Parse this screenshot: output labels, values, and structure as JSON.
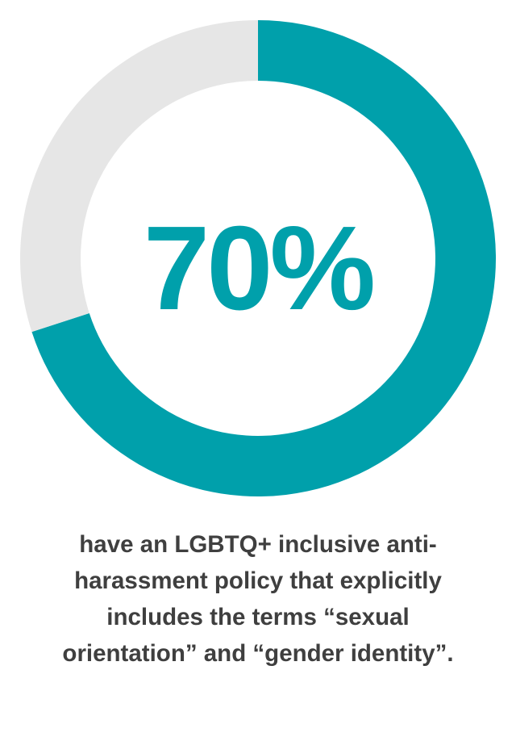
{
  "chart_data": {
    "type": "pie",
    "variant": "donut",
    "categories": [
      "",
      ""
    ],
    "values": [
      70,
      30
    ],
    "colors": [
      "#00a0ab",
      "#e6e6e6"
    ],
    "center_label": "70%"
  },
  "caption": {
    "lines": [
      "have an LGBTQ+ inclusive anti-",
      "harassment policy that explicitly",
      "includes the terms “sexual",
      "orientation” and “gender identity”."
    ]
  }
}
